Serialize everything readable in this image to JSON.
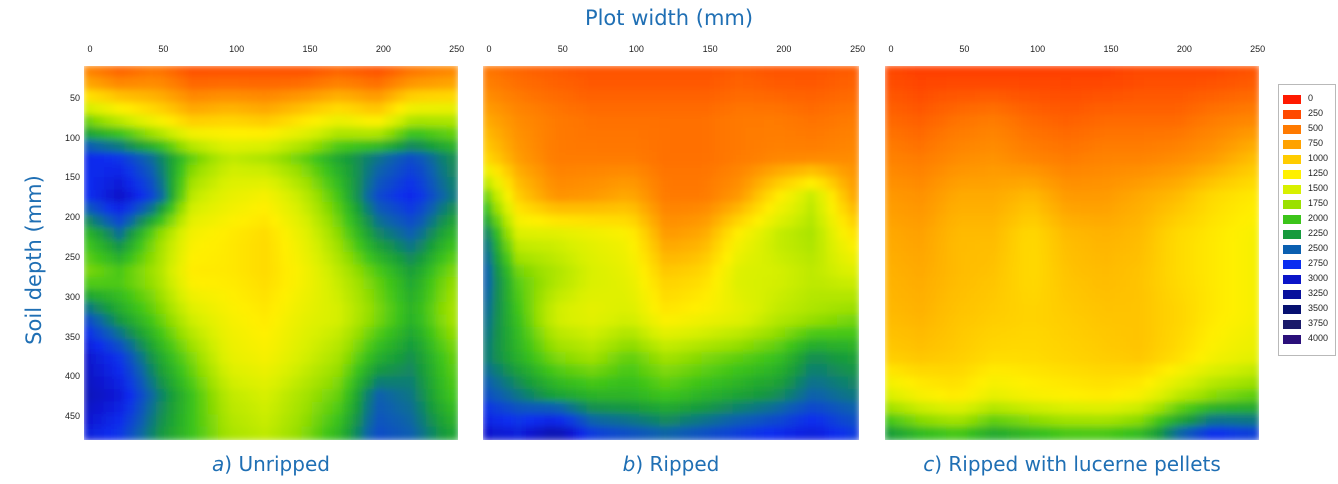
{
  "figure": {
    "x_title": "Plot width (mm)",
    "y_title": "Soil depth (mm)"
  },
  "axes": {
    "x_ticks": [
      "0",
      "50",
      "100",
      "150",
      "200",
      "250"
    ],
    "y_ticks": [
      "50",
      "100",
      "150",
      "200",
      "250",
      "300",
      "350",
      "400",
      "450"
    ]
  },
  "panels": [
    {
      "label_letter": "a",
      "label_text": ") Unripped"
    },
    {
      "label_letter": "b",
      "label_text": ") Ripped"
    },
    {
      "label_letter": "c",
      "label_text": ") Ripped with lucerne pellets"
    }
  ],
  "legend": {
    "entries": [
      {
        "label": "0",
        "color": "#ff1a00"
      },
      {
        "label": "250",
        "color": "#ff4a00"
      },
      {
        "label": "500",
        "color": "#ff7a00"
      },
      {
        "label": "750",
        "color": "#ffa200"
      },
      {
        "label": "1000",
        "color": "#ffcc00"
      },
      {
        "label": "1250",
        "color": "#fff000"
      },
      {
        "label": "1500",
        "color": "#d8f000"
      },
      {
        "label": "1750",
        "color": "#9be000"
      },
      {
        "label": "2000",
        "color": "#3cc41a"
      },
      {
        "label": "2250",
        "color": "#169a3c"
      },
      {
        "label": "2500",
        "color": "#0a5fb0"
      },
      {
        "label": "2750",
        "color": "#0a2df0"
      },
      {
        "label": "3000",
        "color": "#0a14c8"
      },
      {
        "label": "3250",
        "color": "#08109c"
      },
      {
        "label": "3500",
        "color": "#061070"
      },
      {
        "label": "3750",
        "color": "#1a1a6a"
      },
      {
        "label": "4000",
        "color": "#2a0f7a"
      }
    ]
  },
  "chart_data": [
    {
      "type": "heatmap",
      "title": "a) Unripped",
      "xlabel": "Plot width (mm)",
      "ylabel": "Soil depth (mm)",
      "xlim": [
        0,
        255
      ],
      "ylim": [
        480,
        10
      ],
      "value_unit": "legend scale (0-4000)",
      "x": [
        0,
        25,
        50,
        75,
        100,
        125,
        150,
        175,
        200,
        225,
        250
      ],
      "y": [
        25,
        75,
        125,
        175,
        225,
        275,
        325,
        375,
        425,
        475
      ],
      "values": [
        [
          600,
          400,
          500,
          300,
          300,
          300,
          300,
          400,
          300,
          500,
          600
        ],
        [
          1800,
          1500,
          1200,
          900,
          1000,
          900,
          1100,
          1300,
          1100,
          1600,
          1600
        ],
        [
          2800,
          2700,
          2400,
          1900,
          1600,
          1700,
          1900,
          2200,
          2400,
          2600,
          2300
        ],
        [
          2700,
          3000,
          2600,
          1600,
          1400,
          1300,
          1600,
          2000,
          2600,
          2800,
          2400
        ],
        [
          2000,
          2400,
          1800,
          1300,
          1200,
          1100,
          1400,
          1800,
          2300,
          2500,
          2100
        ],
        [
          1800,
          1900,
          1700,
          1200,
          1200,
          1100,
          1300,
          1600,
          1900,
          2200,
          1800
        ],
        [
          2600,
          2200,
          1900,
          1500,
          1300,
          1200,
          1400,
          1500,
          1800,
          2100,
          1700
        ],
        [
          3000,
          2700,
          2200,
          1800,
          1400,
          1300,
          1500,
          1700,
          2100,
          2300,
          1900
        ],
        [
          3100,
          2900,
          2400,
          2000,
          1600,
          1500,
          1700,
          1900,
          2500,
          2400,
          2000
        ],
        [
          2900,
          2700,
          2300,
          2000,
          1700,
          1600,
          1800,
          2100,
          2600,
          2500,
          2200
        ]
      ]
    },
    {
      "type": "heatmap",
      "title": "b) Ripped",
      "xlabel": "Plot width (mm)",
      "ylabel": "Soil depth (mm)",
      "xlim": [
        0,
        255
      ],
      "ylim": [
        480,
        10
      ],
      "value_unit": "legend scale (0-4000)",
      "x": [
        0,
        25,
        50,
        75,
        100,
        125,
        150,
        175,
        200,
        225,
        250
      ],
      "y": [
        25,
        75,
        125,
        175,
        225,
        275,
        325,
        375,
        425,
        475
      ],
      "values": [
        [
          500,
          400,
          350,
          300,
          300,
          300,
          300,
          350,
          300,
          300,
          350
        ],
        [
          800,
          600,
          500,
          450,
          450,
          450,
          450,
          500,
          500,
          450,
          500
        ],
        [
          1100,
          700,
          500,
          500,
          500,
          450,
          450,
          500,
          550,
          550,
          600
        ],
        [
          2000,
          1000,
          650,
          700,
          800,
          500,
          500,
          700,
          1200,
          1600,
          800
        ],
        [
          2500,
          1500,
          1500,
          1400,
          1300,
          700,
          800,
          1300,
          1600,
          1700,
          1200
        ],
        [
          2600,
          1900,
          1700,
          1500,
          1400,
          1000,
          1100,
          1500,
          1500,
          1600,
          1500
        ],
        [
          2500,
          2000,
          1500,
          1400,
          1500,
          1200,
          1300,
          1400,
          1600,
          1700,
          1800
        ],
        [
          2400,
          2100,
          1800,
          1700,
          1900,
          1700,
          1800,
          1900,
          2000,
          2300,
          2200
        ],
        [
          2600,
          2400,
          2200,
          2100,
          2100,
          2000,
          2100,
          2200,
          2300,
          2500,
          2400
        ],
        [
          3000,
          2900,
          3200,
          2700,
          2600,
          2500,
          2600,
          2700,
          2800,
          2900,
          2700
        ]
      ]
    },
    {
      "type": "heatmap",
      "title": "c) Ripped with lucerne pellets",
      "xlabel": "Plot width (mm)",
      "ylabel": "Soil depth (mm)",
      "xlim": [
        0,
        255
      ],
      "ylim": [
        480,
        10
      ],
      "value_unit": "legend scale (0-4000)",
      "x": [
        0,
        25,
        50,
        75,
        100,
        125,
        150,
        175,
        200,
        225,
        250
      ],
      "y": [
        25,
        75,
        125,
        175,
        225,
        275,
        325,
        375,
        425,
        475
      ],
      "values": [
        [
          250,
          200,
          200,
          200,
          200,
          200,
          200,
          250,
          250,
          250,
          300
        ],
        [
          400,
          350,
          450,
          500,
          400,
          350,
          400,
          400,
          400,
          500,
          550
        ],
        [
          550,
          500,
          600,
          650,
          550,
          500,
          550,
          550,
          600,
          700,
          900
        ],
        [
          700,
          650,
          800,
          800,
          900,
          700,
          700,
          800,
          900,
          1100,
          1200
        ],
        [
          800,
          750,
          900,
          900,
          1100,
          900,
          850,
          900,
          1100,
          1200,
          1300
        ],
        [
          850,
          800,
          900,
          950,
          1100,
          950,
          900,
          950,
          1100,
          1200,
          1300
        ],
        [
          900,
          850,
          950,
          1000,
          1050,
          1000,
          950,
          950,
          1050,
          1200,
          1300
        ],
        [
          1000,
          950,
          1000,
          1100,
          1100,
          1050,
          1000,
          950,
          1100,
          1300,
          1400
        ],
        [
          1500,
          1300,
          1200,
          1400,
          1300,
          1250,
          1200,
          1300,
          1600,
          1800,
          1900
        ],
        [
          2300,
          2100,
          2000,
          2200,
          2100,
          2000,
          2000,
          2100,
          2500,
          2800,
          2700
        ]
      ]
    }
  ]
}
